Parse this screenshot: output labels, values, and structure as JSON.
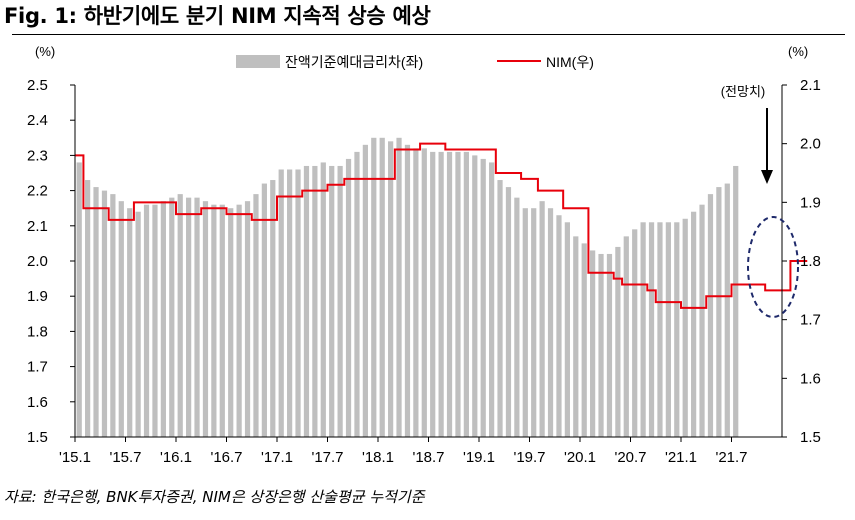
{
  "title": "Fig. 1: 하반기에도 분기 NIM 지속적 상승 예상",
  "source": "자료: 한국은행, BNK투자증권, NIM은 상장은행 산술평균 누적기준",
  "chart_data": {
    "type": "bar+line",
    "title": "Fig. 1: 하반기에도 분기 NIM 지속적 상승 예상",
    "left_axis": {
      "unit": "(%)",
      "min": 1.5,
      "max": 2.5,
      "step": 0.1,
      "ticks": [
        "1.5",
        "1.6",
        "1.7",
        "1.8",
        "1.9",
        "2.0",
        "2.1",
        "2.2",
        "2.3",
        "2.4",
        "2.5"
      ]
    },
    "right_axis": {
      "unit": "(%)",
      "min": 1.5,
      "max": 2.1,
      "step": 0.1,
      "ticks": [
        "1.5",
        "1.6",
        "1.7",
        "1.8",
        "1.9",
        "2.0",
        "2.1"
      ]
    },
    "x_tick_labels": [
      "'15.1",
      "'15.7",
      "'16.1",
      "'16.7",
      "'17.1",
      "'17.7",
      "'18.1",
      "'18.7",
      "'19.1",
      "'19.7",
      "'20.1",
      "'20.7",
      "'21.1",
      "'21.7"
    ],
    "legend": {
      "placement": "top-center",
      "bar_label": "잔액기준예대금리차(좌)",
      "line_label": "NIM(우)"
    },
    "annotation": "(전망치)",
    "colors": {
      "bar": "#bfbfbf",
      "line": "#e8000b",
      "ellipse": "#1f2a6b",
      "axis": "#000000"
    },
    "series": [
      {
        "name": "잔액기준예대금리차(좌)",
        "kind": "bar",
        "axis": "left",
        "values": [
          2.28,
          2.23,
          2.21,
          2.2,
          2.19,
          2.17,
          2.15,
          2.14,
          2.16,
          2.16,
          2.17,
          2.18,
          2.19,
          2.18,
          2.18,
          2.17,
          2.16,
          2.16,
          2.15,
          2.16,
          2.17,
          2.19,
          2.22,
          2.23,
          2.26,
          2.26,
          2.26,
          2.27,
          2.27,
          2.28,
          2.27,
          2.27,
          2.29,
          2.31,
          2.33,
          2.35,
          2.35,
          2.34,
          2.35,
          2.33,
          2.32,
          2.32,
          2.31,
          2.31,
          2.31,
          2.31,
          2.31,
          2.3,
          2.29,
          2.28,
          2.23,
          2.21,
          2.18,
          2.15,
          2.15,
          2.17,
          2.15,
          2.13,
          2.11,
          2.07,
          2.05,
          2.03,
          2.02,
          2.02,
          2.04,
          2.07,
          2.09,
          2.11,
          2.11,
          2.11,
          2.11,
          2.11,
          2.12,
          2.14,
          2.16,
          2.19,
          2.21,
          2.22,
          2.27
        ]
      },
      {
        "name": "NIM(우)",
        "kind": "line",
        "axis": "right",
        "values": [
          1.98,
          1.89,
          1.89,
          1.89,
          1.87,
          1.87,
          1.87,
          1.9,
          1.9,
          1.9,
          1.9,
          1.9,
          1.88,
          1.88,
          1.88,
          1.89,
          1.89,
          1.89,
          1.88,
          1.88,
          1.88,
          1.87,
          1.87,
          1.87,
          1.91,
          1.91,
          1.91,
          1.92,
          1.92,
          1.92,
          1.93,
          1.93,
          1.94,
          1.94,
          1.94,
          1.94,
          1.94,
          1.94,
          1.99,
          1.99,
          1.99,
          2.0,
          2.0,
          2.0,
          1.99,
          1.99,
          1.99,
          1.99,
          1.99,
          1.99,
          1.95,
          1.95,
          1.95,
          1.94,
          1.94,
          1.92,
          1.92,
          1.92,
          1.89,
          1.89,
          1.89,
          1.78,
          1.78,
          1.78,
          1.77,
          1.76,
          1.76,
          1.76,
          1.75,
          1.73,
          1.73,
          1.73,
          1.72,
          1.72,
          1.72,
          1.74,
          1.74,
          1.74,
          1.76,
          1.76,
          1.76,
          1.76,
          1.75,
          1.75,
          1.75,
          1.8,
          1.8
        ]
      }
    ]
  }
}
